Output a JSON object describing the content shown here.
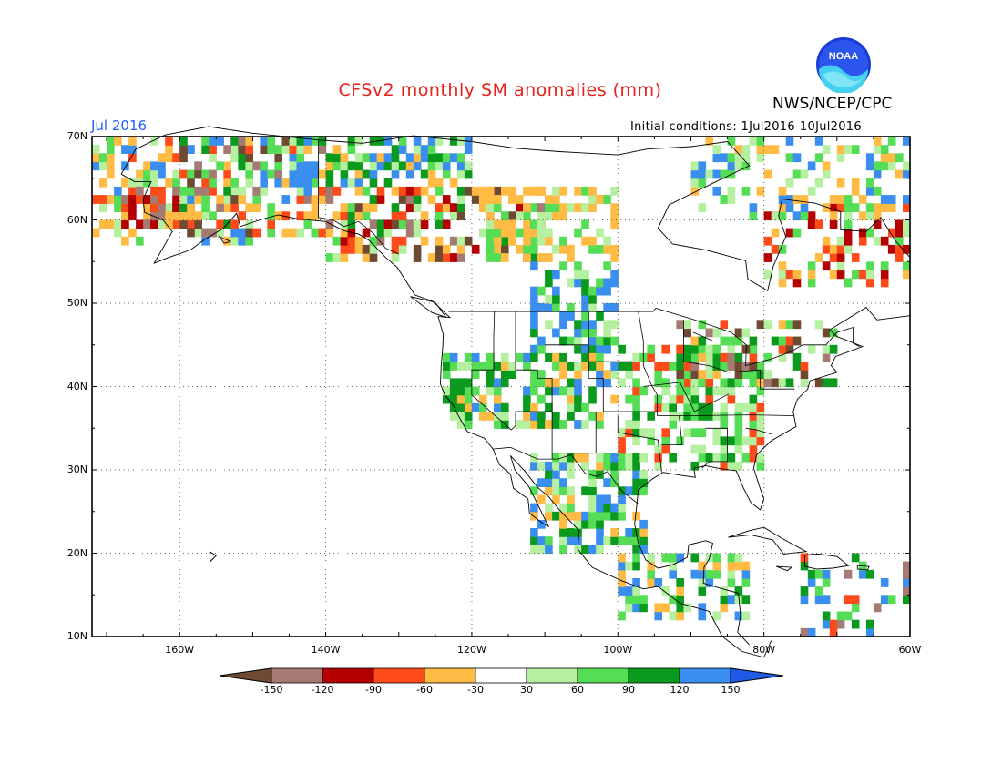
{
  "title": "CFSv2 monthly SM anomalies (mm)",
  "agency": "NWS/NCEP/CPC",
  "month_label": "Jul 2016",
  "initial_conditions": "Initial conditions: 1Jul2016-10Jul2016",
  "logo_text": "NOAA",
  "map": {
    "lon_range": [
      -172,
      -60
    ],
    "lat_range": [
      10,
      70
    ],
    "lat_ticks": [
      "70N",
      "60N",
      "50N",
      "40N",
      "30N",
      "20N",
      "10N"
    ],
    "lon_ticks": [
      "160W",
      "140W",
      "120W",
      "100W",
      "80W",
      "60W"
    ],
    "gridlines": "dotted"
  },
  "colorbar": {
    "levels": [
      "-150",
      "-120",
      "-90",
      "-60",
      "-30",
      "30",
      "60",
      "90",
      "120",
      "150"
    ],
    "colors": [
      "#6e4a32",
      "#a57a72",
      "#b40000",
      "#ff4a1a",
      "#ffbb44",
      "#ffffff",
      "#b4f0a0",
      "#55dd55",
      "#0a9a1e",
      "#3a8ef0",
      "#1e5ae6"
    ]
  },
  "colors": {
    "title": "#e8201a",
    "month": "#1f5fff"
  }
}
